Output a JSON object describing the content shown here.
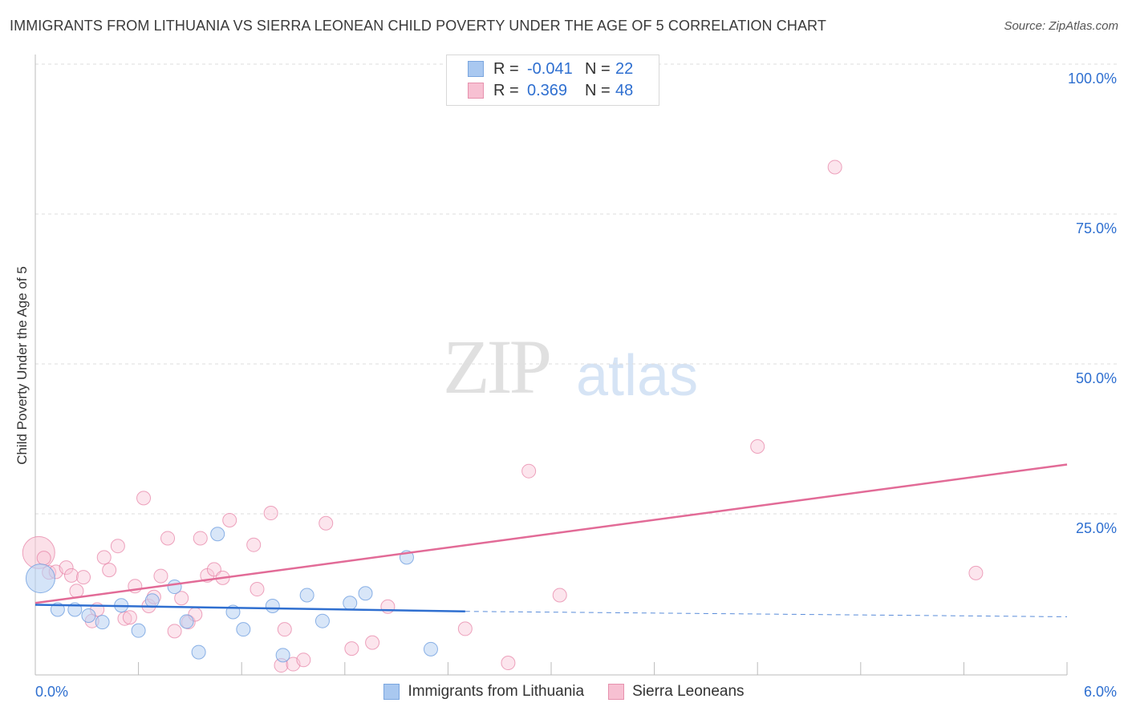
{
  "header": {
    "title": "IMMIGRANTS FROM LITHUANIA VS SIERRA LEONEAN CHILD POVERTY UNDER THE AGE OF 5 CORRELATION CHART",
    "source": "Source: ZipAtlas.com"
  },
  "watermark": {
    "zip": "ZIP",
    "atlas": "atlas"
  },
  "legend": {
    "rows": [
      {
        "r_label": "R =",
        "r_value": "-0.041",
        "n_label": "N =",
        "n_value": "22",
        "color": "#a9c8f0",
        "border": "#7aa6df"
      },
      {
        "r_label": "R =",
        "r_value": "0.369",
        "n_label": "N =",
        "n_value": "48",
        "color": "#f7c0d2",
        "border": "#e691ad"
      }
    ],
    "bottom": [
      "Immigrants from Lithuania",
      "Sierra Leoneans"
    ]
  },
  "chart_data": {
    "type": "scatter",
    "title": "IMMIGRANTS FROM LITHUANIA VS SIERRA LEONEAN CHILD POVERTY UNDER THE AGE OF 5 CORRELATION CHART",
    "xlabel": "",
    "ylabel": "Child Poverty Under the Age of 5",
    "xlim": [
      0,
      6
    ],
    "ylim": [
      0,
      100
    ],
    "x_tick_labels": [
      "0.0%",
      "6.0%"
    ],
    "y_tick_labels": [
      "100.0%",
      "75.0%",
      "50.0%",
      "25.0%"
    ],
    "y_ticks": [
      100,
      75,
      50,
      25
    ],
    "grid": true,
    "colors": {
      "lithuania": "#6f9fe0",
      "lithuania_fill": "#b8d2f3",
      "sierra": "#e57ea2",
      "sierra_fill": "#f8c6d6",
      "blue_line": "#2f6fd0",
      "pink_line": "#e26b97"
    },
    "series": [
      {
        "name": "Immigrants from Lithuania",
        "points": [
          [
            0.03,
            16.5
          ],
          [
            0.13,
            11.3
          ],
          [
            0.23,
            11.3
          ],
          [
            0.31,
            10.3
          ],
          [
            0.39,
            9.2
          ],
          [
            0.5,
            12.0
          ],
          [
            0.6,
            7.8
          ],
          [
            0.68,
            12.8
          ],
          [
            0.81,
            15.1
          ],
          [
            0.88,
            9.3
          ],
          [
            0.95,
            4.2
          ],
          [
            1.06,
            23.9
          ],
          [
            1.15,
            10.9
          ],
          [
            1.21,
            8.0
          ],
          [
            1.38,
            11.9
          ],
          [
            1.44,
            3.7
          ],
          [
            1.58,
            13.7
          ],
          [
            1.67,
            9.4
          ],
          [
            1.83,
            12.4
          ],
          [
            1.92,
            14.0
          ],
          [
            2.16,
            20.0
          ],
          [
            2.3,
            4.7
          ]
        ],
        "big_points": [
          [
            0.03,
            16.5
          ]
        ],
        "trend": {
          "solid": [
            [
              0.0,
              12.1
            ],
            [
              2.5,
              11.0
            ]
          ],
          "dashed": [
            [
              2.5,
              11.0
            ],
            [
              6.0,
              10.1
            ]
          ]
        }
      },
      {
        "name": "Sierra Leoneans",
        "points": [
          [
            0.02,
            20.8
          ],
          [
            0.05,
            19.9
          ],
          [
            0.08,
            17.5
          ],
          [
            0.12,
            17.6
          ],
          [
            0.18,
            18.3
          ],
          [
            0.21,
            17.0
          ],
          [
            0.24,
            14.4
          ],
          [
            0.28,
            16.7
          ],
          [
            0.33,
            9.4
          ],
          [
            0.36,
            11.3
          ],
          [
            0.4,
            20.0
          ],
          [
            0.43,
            17.9
          ],
          [
            0.48,
            21.9
          ],
          [
            0.52,
            9.8
          ],
          [
            0.55,
            10.0
          ],
          [
            0.58,
            15.2
          ],
          [
            0.63,
            29.9
          ],
          [
            0.66,
            11.9
          ],
          [
            0.69,
            13.4
          ],
          [
            0.73,
            16.9
          ],
          [
            0.77,
            23.2
          ],
          [
            0.81,
            7.7
          ],
          [
            0.85,
            13.2
          ],
          [
            0.89,
            9.2
          ],
          [
            0.93,
            10.5
          ],
          [
            0.96,
            23.2
          ],
          [
            1.0,
            17.0
          ],
          [
            1.04,
            18.0
          ],
          [
            1.09,
            16.6
          ],
          [
            1.13,
            26.2
          ],
          [
            1.27,
            22.1
          ],
          [
            1.29,
            14.7
          ],
          [
            1.37,
            27.4
          ],
          [
            1.43,
            2.0
          ],
          [
            1.45,
            8.0
          ],
          [
            1.5,
            2.2
          ],
          [
            1.56,
            2.9
          ],
          [
            1.69,
            25.7
          ],
          [
            1.84,
            4.8
          ],
          [
            1.96,
            5.8
          ],
          [
            2.05,
            11.8
          ],
          [
            2.5,
            8.1
          ],
          [
            2.75,
            2.4
          ],
          [
            2.87,
            34.4
          ],
          [
            3.05,
            13.7
          ],
          [
            4.2,
            38.5
          ],
          [
            4.65,
            85.1
          ],
          [
            5.47,
            17.4
          ]
        ],
        "big_points": [
          [
            0.02,
            20.8
          ]
        ],
        "trend": {
          "solid": [
            [
              0.0,
              12.4
            ],
            [
              6.0,
              35.5
            ]
          ]
        }
      }
    ]
  }
}
